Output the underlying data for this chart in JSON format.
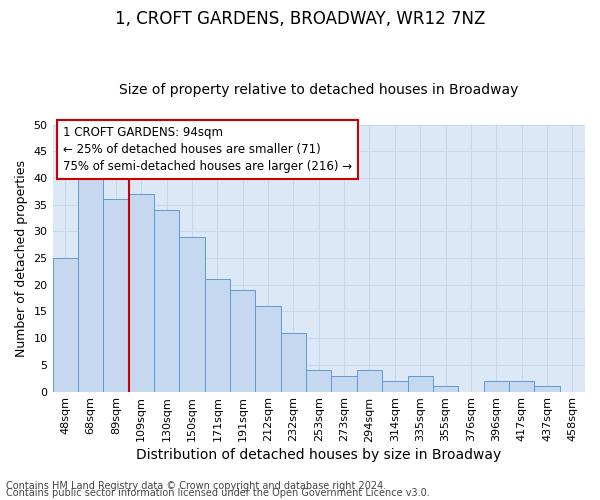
{
  "title": "1, CROFT GARDENS, BROADWAY, WR12 7NZ",
  "subtitle": "Size of property relative to detached houses in Broadway",
  "xlabel": "Distribution of detached houses by size in Broadway",
  "ylabel": "Number of detached properties",
  "categories": [
    "48sqm",
    "68sqm",
    "89sqm",
    "109sqm",
    "130sqm",
    "150sqm",
    "171sqm",
    "191sqm",
    "212sqm",
    "232sqm",
    "253sqm",
    "273sqm",
    "294sqm",
    "314sqm",
    "335sqm",
    "355sqm",
    "376sqm",
    "396sqm",
    "417sqm",
    "437sqm",
    "458sqm"
  ],
  "values": [
    25,
    40,
    36,
    37,
    34,
    29,
    21,
    19,
    16,
    11,
    4,
    3,
    4,
    2,
    3,
    1,
    0,
    2,
    2,
    1,
    0
  ],
  "bar_color": "#c5d8f0",
  "bar_edge_color": "#5b9bd5",
  "vline_index": 2,
  "vline_color": "#cc0000",
  "annotation_text": "1 CROFT GARDENS: 94sqm\n← 25% of detached houses are smaller (71)\n75% of semi-detached houses are larger (216) →",
  "annotation_box_color": "#ffffff",
  "annotation_box_edge": "#cc0000",
  "ylim": [
    0,
    50
  ],
  "yticks": [
    0,
    5,
    10,
    15,
    20,
    25,
    30,
    35,
    40,
    45,
    50
  ],
  "footer1": "Contains HM Land Registry data © Crown copyright and database right 2024.",
  "footer2": "Contains public sector information licensed under the Open Government Licence v3.0.",
  "grid_color": "#c8d8ec",
  "background_color": "#dce8f5",
  "title_fontsize": 12,
  "subtitle_fontsize": 10,
  "tick_fontsize": 8,
  "ylabel_fontsize": 9,
  "xlabel_fontsize": 10,
  "annotation_fontsize": 8.5,
  "footer_fontsize": 7
}
